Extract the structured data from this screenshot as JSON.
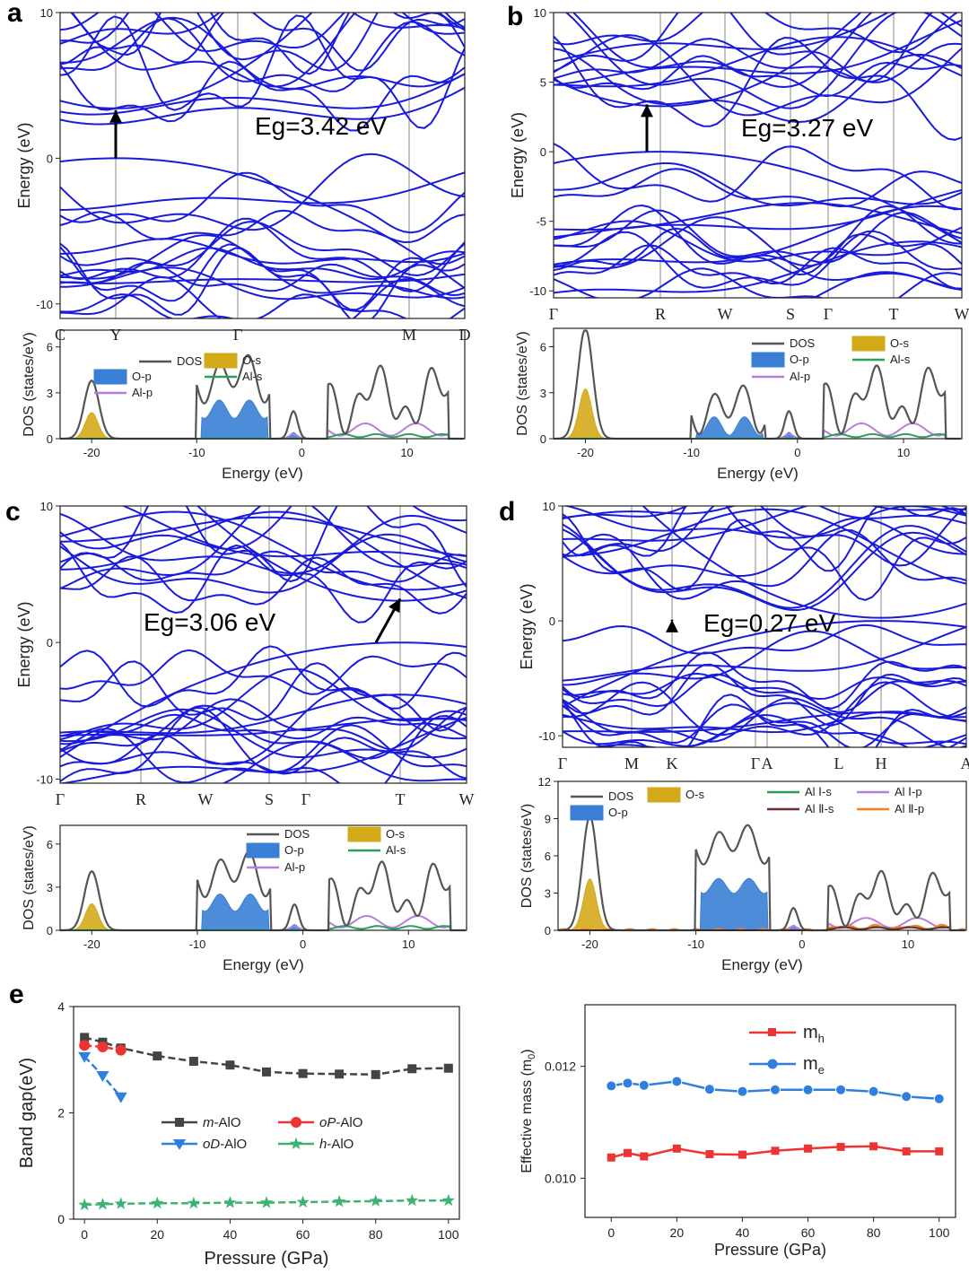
{
  "panels": [
    {
      "letter": "a",
      "gap_label": "Eg=3.42 eV",
      "band_ylabel": "Energy (eV)",
      "band_yticks": [
        "10",
        "0",
        "-10"
      ],
      "kpoints": [
        "C",
        "Y",
        "Γ",
        "M",
        "D"
      ],
      "dos": {
        "ylabel": "DOS (states/eV)",
        "xlabel": "Energy (eV)",
        "xticks": [
          "-20",
          "-10",
          "0",
          "10"
        ],
        "yticks": [
          "0",
          "3",
          "6"
        ],
        "legend": [
          "DOS",
          "O-p",
          "Al-p",
          "O-s",
          "Al-s"
        ]
      }
    },
    {
      "letter": "b",
      "gap_label": "Eg=3.27 eV",
      "band_ylabel": "Energy (eV)",
      "band_yticks": [
        "10",
        "5",
        "0",
        "-5",
        "-10"
      ],
      "kpoints": [
        "Γ",
        "R",
        "W",
        "S",
        "Γ",
        "T",
        "W"
      ],
      "dos": {
        "ylabel": "DOS (states/eV)",
        "xlabel": "Energy (eV)",
        "xticks": [
          "-20",
          "-10",
          "0",
          "10"
        ],
        "yticks": [
          "0",
          "3",
          "6"
        ],
        "legend": [
          "DOS",
          "O-p",
          "Al-p",
          "O-s",
          "Al-s"
        ]
      }
    },
    {
      "letter": "c",
      "gap_label": "Eg=3.06 eV",
      "band_ylabel": "Energy (eV)",
      "band_yticks": [
        "10",
        "0",
        "-10"
      ],
      "kpoints": [
        "Γ",
        "R",
        "W",
        "S",
        "Γ",
        "T",
        "W"
      ],
      "dos": {
        "ylabel": "DOS (states/eV)",
        "xlabel": "Energy (eV)",
        "xticks": [
          "-20",
          "-10",
          "0",
          "10"
        ],
        "yticks": [
          "0",
          "3",
          "6"
        ],
        "legend": [
          "DOS",
          "O-p",
          "Al-p",
          "O-s",
          "Al-s"
        ]
      }
    },
    {
      "letter": "d",
      "gap_label": "Eg=0.27 eV",
      "band_ylabel": "Energy (eV)",
      "band_yticks": [
        "10",
        "0",
        "-10"
      ],
      "kpoints": [
        "Γ",
        "M",
        "K",
        "Γ",
        "A",
        "L",
        "H",
        "A"
      ],
      "dos": {
        "ylabel": "DOS (states/eV)",
        "xlabel": "Energy (eV)",
        "xticks": [
          "-20",
          "-10",
          "0",
          "10"
        ],
        "yticks": [
          "0",
          "3",
          "6",
          "9",
          "12"
        ],
        "legend": [
          "DOS",
          "O-p",
          "O-s",
          "Al Ⅰ-s",
          "Al Ⅱ-s",
          "Al Ⅰ-p",
          "Al Ⅱ-p"
        ]
      }
    }
  ],
  "colors": {
    "band": "#1a1adc",
    "dos_total": "#555555",
    "o_p": "#3a7fd5",
    "o_s": "#d4aa1a",
    "al_p": "#b77ee0",
    "al_s": "#2aa05a",
    "al2_s": "#6b2e2e",
    "al2_p": "#ff7f1a",
    "mAlO": "#444444",
    "oPAlO": "#ee3333",
    "oDAlO": "#2f7fe0",
    "hAlO": "#3cb371",
    "mh": "#ee3333",
    "me": "#2f7fe0"
  },
  "panel_e": {
    "letter": "e",
    "ylabel": "Band gap(eV)",
    "xlabel": "Pressure (GPa)",
    "xticks": [
      "0",
      "20",
      "40",
      "60",
      "80",
      "100"
    ],
    "yticks": [
      "0",
      "2",
      "4"
    ],
    "legend": [
      {
        "prefix": "m",
        "suffix": "-AlO"
      },
      {
        "prefix": "oP",
        "suffix": "-AlO"
      },
      {
        "prefix": "oD",
        "suffix": "-AlO"
      },
      {
        "prefix": "h",
        "suffix": "-AlO"
      }
    ]
  },
  "panel_f": {
    "ylabel_main": "Effective mass (m",
    "ylabel_sub": "0",
    "ylabel_close": ")",
    "xlabel": "Pressure (GPa)",
    "xticks": [
      "0",
      "20",
      "40",
      "60",
      "80",
      "100"
    ],
    "yticks": [
      "0.010",
      "0.012"
    ],
    "legend": [
      {
        "main": "m",
        "sub": "h"
      },
      {
        "main": "m",
        "sub": "e"
      }
    ]
  },
  "chart_data": [
    {
      "type": "line",
      "x": [
        0,
        5,
        10,
        20,
        30,
        40,
        50,
        60,
        70,
        80,
        90,
        100
      ],
      "xlabel": "Pressure (GPa)",
      "ylabel": "Band gap(eV)",
      "xlim": [
        -3,
        103
      ],
      "ylim": [
        0,
        4
      ],
      "series": [
        {
          "name": "m-AlO",
          "x": [
            0,
            5,
            10,
            20,
            30,
            40,
            50,
            60,
            70,
            80,
            90,
            100
          ],
          "values": [
            3.42,
            3.33,
            3.22,
            3.07,
            2.97,
            2.9,
            2.77,
            2.74,
            2.73,
            2.72,
            2.83,
            2.84
          ]
        },
        {
          "name": "oP-AlO",
          "x": [
            0,
            5,
            10
          ],
          "values": [
            3.27,
            3.24,
            3.18
          ]
        },
        {
          "name": "oD-AlO",
          "x": [
            0,
            5,
            10
          ],
          "values": [
            3.06,
            2.7,
            2.3
          ]
        },
        {
          "name": "h-AlO",
          "x": [
            0,
            5,
            10,
            20,
            30,
            40,
            50,
            60,
            70,
            80,
            90,
            100
          ],
          "values": [
            0.27,
            0.28,
            0.29,
            0.3,
            0.3,
            0.31,
            0.31,
            0.32,
            0.33,
            0.34,
            0.35,
            0.35
          ]
        }
      ],
      "legend_position": "center-left"
    },
    {
      "type": "line",
      "x": [
        0,
        5,
        10,
        20,
        30,
        40,
        50,
        60,
        70,
        80,
        90,
        100
      ],
      "xlabel": "Pressure (GPa)",
      "ylabel": "Effective mass (m0)",
      "xlim": [
        -8,
        105
      ],
      "ylim": [
        0.0093,
        0.0131
      ],
      "series": [
        {
          "name": "mh",
          "values": [
            0.01037,
            0.01045,
            0.01039,
            0.01053,
            0.01043,
            0.01042,
            0.01049,
            0.01053,
            0.01056,
            0.01057,
            0.01048,
            0.01048
          ]
        },
        {
          "name": "me",
          "values": [
            0.01165,
            0.0117,
            0.01166,
            0.01173,
            0.01159,
            0.01155,
            0.01158,
            0.01158,
            0.01158,
            0.01155,
            0.01146,
            0.01142
          ]
        }
      ],
      "legend_position": "top-center"
    }
  ]
}
